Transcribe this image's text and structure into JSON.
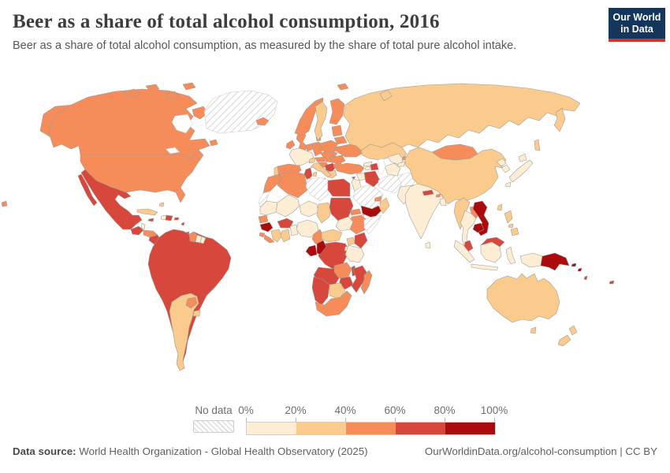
{
  "header": {
    "title": "Beer as a share of total alcohol consumption, 2016",
    "subtitle": "Beer as a share of total alcohol consumption, as measured by the share of total pure alcohol intake.",
    "logo": {
      "line1": "Our World",
      "line2": "in Data",
      "bg": "#14355c",
      "accent": "#d0342c"
    }
  },
  "legend": {
    "no_data_label": "No data",
    "ticks": [
      "0%",
      "20%",
      "40%",
      "60%",
      "80%",
      "100%"
    ]
  },
  "footer": {
    "source_label": "Data source:",
    "source_text": " World Health Organization - Global Health Observatory (2025)",
    "right_text": "OurWorldinData.org/alcohol-consumption | CC BY"
  },
  "chart_data": {
    "type": "heatmap",
    "subtype": "world-choropleth-map",
    "title": "Beer as a share of total alcohol consumption, 2016",
    "unit": "% of total pure alcohol intake",
    "year": 2016,
    "legend_position": "bottom",
    "bins": [
      {
        "range": "0-20%",
        "color": "#fcedd4"
      },
      {
        "range": "20-40%",
        "color": "#facb8c"
      },
      {
        "range": "40-60%",
        "color": "#f78c5b"
      },
      {
        "range": "60-80%",
        "color": "#d8473b"
      },
      {
        "range": "80-100%",
        "color": "#ab0b0d"
      }
    ],
    "no_data_style": "diagonal-hatch",
    "values": {
      "Canada": "40-60%",
      "United States": "40-60%",
      "Greenland": "no-data",
      "Iceland": "40-60%",
      "Mexico": "60-80%",
      "Guatemala": "60-80%",
      "Belize": "0-20%",
      "Honduras": "40-60%",
      "Nicaragua": "60-80%",
      "Costa Rica": "40-60%",
      "Panama": "60-80%",
      "Cuba": "20-40%",
      "Jamaica": "60-80%",
      "Haiti": "0-20%",
      "Dominican Republic": "60-80%",
      "Puerto Rico": "60-80%",
      "Bahamas": "20-40%",
      "Barbados": "60-80%",
      "Trinidad and Tobago": "60-80%",
      "Colombia": "60-80%",
      "Venezuela": "60-80%",
      "Ecuador": "60-80%",
      "Peru": "60-80%",
      "Bolivia": "60-80%",
      "Brazil": "60-80%",
      "Guyana": "40-60%",
      "Suriname": "0-20%",
      "French Guiana": "0-20%",
      "Paraguay": "40-60%",
      "Uruguay": "20-40%",
      "Argentina": "20-40%",
      "Chile": "20-40%",
      "Ireland": "40-60%",
      "United Kingdom": "40-60%",
      "Portugal": "20-40%",
      "Spain": "40-60%",
      "France": "0-20%",
      "Netherlands": "40-60%",
      "Belgium": "40-60%",
      "Germany": "40-60%",
      "Denmark": "40-60%",
      "Norway": "40-60%",
      "Sweden": "20-40%",
      "Finland": "40-60%",
      "Estonia": "40-60%",
      "Latvia": "40-60%",
      "Lithuania": "40-60%",
      "Poland": "40-60%",
      "Czechia": "40-60%",
      "Slovakia": "40-60%",
      "Austria": "40-60%",
      "Switzerland": "20-40%",
      "Hungary": "40-60%",
      "Slovenia": "40-60%",
      "Croatia": "40-60%",
      "Serbia": "60-80%",
      "Bosnia and Herzegovina": "60-80%",
      "Albania": "20-40%",
      "Greece": "20-40%",
      "Bulgaria": "40-60%",
      "Romania": "40-60%",
      "Moldova": "40-60%",
      "Ukraine": "40-60%",
      "Belarus": "40-60%",
      "Italy": "20-40%",
      "Russia": "20-40%",
      "Turkey": "40-60%",
      "Cyprus": "60-80%",
      "Georgia": "0-20%",
      "Armenia": "0-20%",
      "Azerbaijan": "60-80%",
      "Kazakhstan": "20-40%",
      "Uzbekistan": "0-20%",
      "Turkmenistan": "0-20%",
      "Kyrgyzstan": "40-60%",
      "Tajikistan": "0-20%",
      "Iran": "no-data",
      "Afghanistan": "no-data",
      "Pakistan": "0-20%",
      "Iraq": "60-80%",
      "Syria": "0-20%",
      "Jordan": "0-20%",
      "Lebanon": "0-20%",
      "Israel": "0-20%",
      "Saudi Arabia": "no-data",
      "Yemen": "80-100%",
      "Oman": "20-40%",
      "United Arab Emirates": "40-60%",
      "India": "0-20%",
      "Nepal": "60-80%",
      "Bhutan": "40-60%",
      "Bangladesh": "0-20%",
      "Sri Lanka": "0-20%",
      "China": "20-40%",
      "Mongolia": "40-60%",
      "North Korea": "0-20%",
      "South Korea": "0-20%",
      "Japan": "0-20%",
      "Taiwan": "20-40%",
      "Myanmar": "20-40%",
      "Laos": "40-60%",
      "Vietnam": "80-100%",
      "Cambodia": "80-100%",
      "Thailand": "0-20%",
      "Malaysia": "60-80%",
      "Indonesia": "0-20%",
      "Philippines": "20-40%",
      "Papua New Guinea": "80-100%",
      "Solomon Islands": "80-100%",
      "Vanuatu": "60-80%",
      "Fiji": "60-80%",
      "Australia": "20-40%",
      "New Zealand": "20-40%",
      "Morocco": "40-60%",
      "Western Sahara": "no-data",
      "Algeria": "40-60%",
      "Tunisia": "60-80%",
      "Libya": "no-data",
      "Egypt": "60-80%",
      "Mauritania": "0-20%",
      "Mali": "0-20%",
      "Niger": "0-20%",
      "Chad": "20-40%",
      "Sudan": "60-80%",
      "Eritrea": "40-60%",
      "Djibouti": "0-20%",
      "Ethiopia": "40-60%",
      "Somalia": "no-data",
      "South Sudan": "0-20%",
      "Senegal": "40-60%",
      "Guinea": "80-100%",
      "Sierra Leone": "40-60%",
      "Liberia": "40-60%",
      "Cote d'Ivoire": "20-40%",
      "Ghana": "20-40%",
      "Burkina Faso": "60-80%",
      "Benin": "0-20%",
      "Togo": "0-20%",
      "Nigeria": "0-20%",
      "Cameroon": "40-60%",
      "Central African Republic": "20-40%",
      "Democratic Republic of Congo": "60-80%",
      "Gabon": "80-100%",
      "Congo": "80-100%",
      "Uganda": "20-40%",
      "Kenya": "60-80%",
      "Rwanda": "0-20%",
      "Burundi": "0-20%",
      "Tanzania": "0-20%",
      "Angola": "60-80%",
      "Zambia": "40-60%",
      "Malawi": "60-80%",
      "Mozambique": "60-80%",
      "Zimbabwe": "60-80%",
      "Botswana": "20-40%",
      "Namibia": "60-80%",
      "South Africa": "40-60%",
      "Madagascar": "40-60%"
    }
  }
}
